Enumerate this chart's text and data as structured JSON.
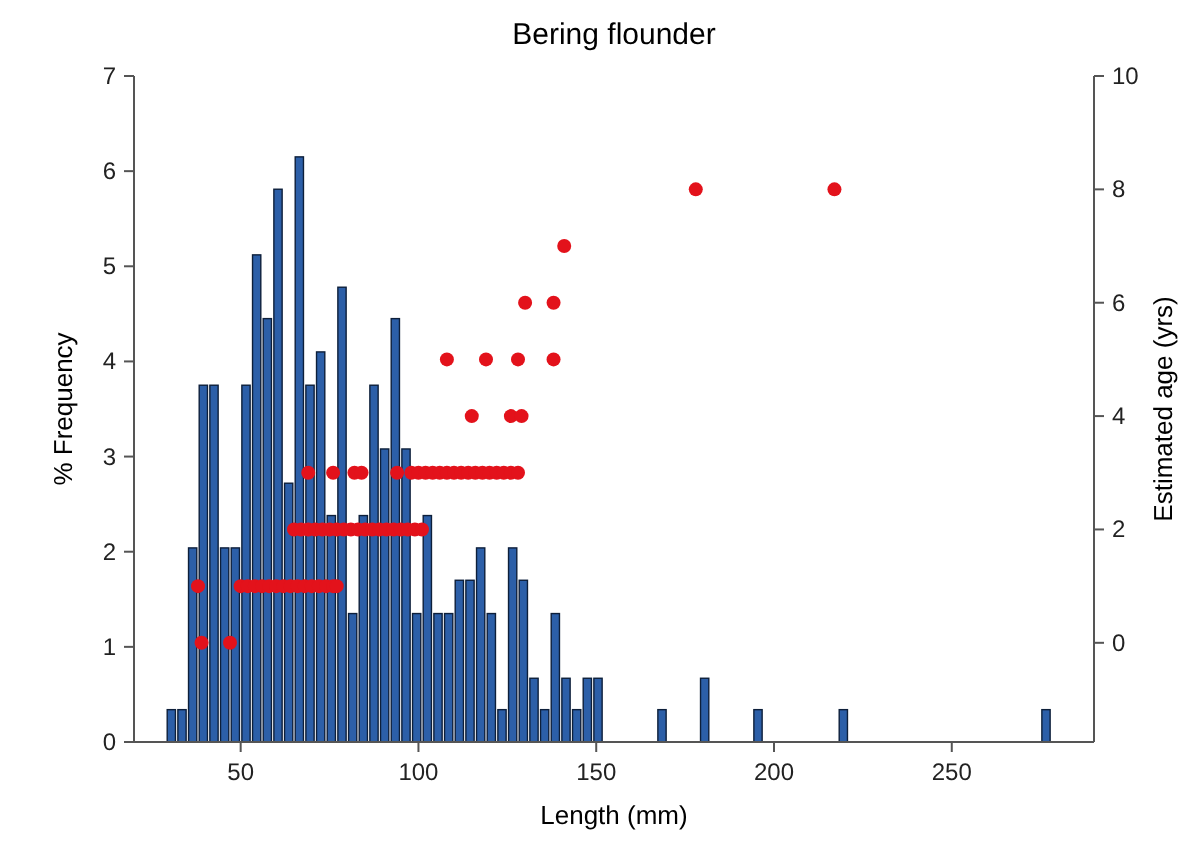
{
  "chart_data": {
    "type": "histogram",
    "title": "Bering flounder",
    "xlabel": "Length (mm)",
    "ylabel": "% Frequency",
    "y2label": "Estimated age (yrs)",
    "bins": [
      29,
      32,
      35,
      38,
      41,
      44,
      47,
      50,
      53,
      56,
      59,
      62,
      65,
      68,
      71,
      74,
      77,
      80,
      83,
      86,
      89,
      92,
      95,
      98,
      101,
      104,
      107,
      110,
      113,
      116,
      119,
      122,
      125,
      128,
      131,
      134,
      137,
      140,
      143,
      146,
      149,
      152,
      155,
      158,
      161,
      164,
      167,
      170,
      173,
      176,
      179,
      182,
      185,
      188,
      191,
      194,
      197,
      200,
      203,
      206,
      209,
      212,
      215,
      218,
      221,
      224,
      227,
      230,
      233,
      236,
      239,
      242,
      245,
      248,
      251,
      254,
      257,
      260,
      263,
      266,
      269,
      272,
      275,
      278
    ],
    "xlim": [
      20,
      290
    ],
    "xticks": [
      50,
      100,
      150,
      200,
      250
    ],
    "ylim": [
      0,
      7
    ],
    "yticks": [
      0,
      1,
      2,
      3,
      4,
      5,
      6,
      7
    ],
    "y2lim": [
      -1.75,
      10
    ],
    "y2ticks": [
      0,
      2,
      4,
      6,
      8,
      10
    ],
    "marker": "circle",
    "grid": false,
    "series": [
      {
        "color": "#2c5fa8",
        "values": [
          0.34,
          0.34,
          2.04,
          3.75,
          3.75,
          2.04,
          2.04,
          3.75,
          5.12,
          4.45,
          5.81,
          2.72,
          6.15,
          3.75,
          4.1,
          2.38,
          4.78,
          1.35,
          2.38,
          3.75,
          3.08,
          4.45,
          3.08,
          1.35,
          2.38,
          1.35,
          1.35,
          1.7,
          1.7,
          2.04,
          1.35,
          0.34,
          2.04,
          1.7,
          0.67,
          0.34,
          1.35,
          0.67,
          0.34,
          0.67,
          0.67,
          0,
          0,
          0,
          0,
          0,
          0.34,
          0,
          0,
          0,
          0.67,
          0,
          0,
          0,
          0,
          0.34,
          0,
          0,
          0,
          0,
          0,
          0,
          0,
          0.34,
          0,
          0,
          0,
          0,
          0,
          0,
          0,
          0,
          0,
          0,
          0,
          0,
          0,
          0,
          0,
          0,
          0,
          0,
          0.34
        ]
      },
      {
        "type": "scatter",
        "axis": "y2",
        "color": "#e3121b",
        "x": [
          39,
          47,
          38,
          50,
          52,
          54,
          56,
          58,
          60,
          62,
          64,
          66,
          68,
          70,
          72,
          74,
          76,
          77,
          65,
          67,
          69,
          71,
          73,
          75,
          77,
          79,
          81,
          83,
          85,
          87,
          89,
          91,
          93,
          95,
          97,
          99,
          101,
          69,
          76,
          82,
          84,
          94,
          98,
          100,
          102,
          104,
          106,
          108,
          110,
          112,
          114,
          116,
          118,
          120,
          122,
          124,
          126,
          128,
          115,
          126,
          129,
          108,
          119,
          128,
          138,
          130,
          138,
          141,
          178,
          217
        ],
        "values": [
          0,
          0,
          1,
          1,
          1,
          1,
          1,
          1,
          1,
          1,
          1,
          1,
          1,
          1,
          1,
          1,
          1,
          1,
          2,
          2,
          2,
          2,
          2,
          2,
          2,
          2,
          2,
          2,
          2,
          2,
          2,
          2,
          2,
          2,
          2,
          2,
          2,
          3,
          3,
          3,
          3,
          3,
          3,
          3,
          3,
          3,
          3,
          3,
          3,
          3,
          3,
          3,
          3,
          3,
          3,
          3,
          3,
          3,
          4,
          4,
          4,
          5,
          5,
          5,
          5,
          6,
          6,
          7,
          8,
          8
        ]
      }
    ]
  }
}
